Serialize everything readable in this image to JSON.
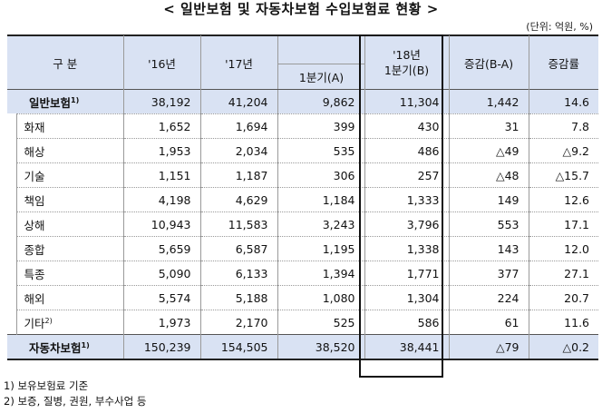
{
  "title": "< 일반보험 및 자동차보험 수입보험료 현황 >",
  "unit": "(단위: 억원, %)",
  "headers": {
    "category": "구   분",
    "y16": "'16년",
    "y17": "'17년",
    "q1a": "1분기(A)",
    "y18_line1": "'18년",
    "y18_line2": "1분기(B)",
    "change": "증감(B-A)",
    "rate": "증감률"
  },
  "rows": [
    {
      "label": "일반보험",
      "sup": "1)",
      "y16": "38,192",
      "y17": "41,204",
      "q1a": "9,862",
      "q1b": "11,304",
      "change": "1,442",
      "rate": "14.6"
    },
    {
      "label": "화재",
      "sup": "",
      "y16": "1,652",
      "y17": "1,694",
      "q1a": "399",
      "q1b": "430",
      "change": "31",
      "rate": "7.8"
    },
    {
      "label": "해상",
      "sup": "",
      "y16": "1,953",
      "y17": "2,034",
      "q1a": "535",
      "q1b": "486",
      "change": "△49",
      "rate": "△9.2"
    },
    {
      "label": "기술",
      "sup": "",
      "y16": "1,151",
      "y17": "1,187",
      "q1a": "306",
      "q1b": "257",
      "change": "△48",
      "rate": "△15.7"
    },
    {
      "label": "책임",
      "sup": "",
      "y16": "4,198",
      "y17": "4,629",
      "q1a": "1,184",
      "q1b": "1,333",
      "change": "149",
      "rate": "12.6"
    },
    {
      "label": "상해",
      "sup": "",
      "y16": "10,943",
      "y17": "11,583",
      "q1a": "3,243",
      "q1b": "3,796",
      "change": "553",
      "rate": "17.1"
    },
    {
      "label": "종합",
      "sup": "",
      "y16": "5,659",
      "y17": "6,587",
      "q1a": "1,195",
      "q1b": "1,338",
      "change": "143",
      "rate": "12.0"
    },
    {
      "label": "특종",
      "sup": "",
      "y16": "5,090",
      "y17": "6,133",
      "q1a": "1,394",
      "q1b": "1,771",
      "change": "377",
      "rate": "27.1"
    },
    {
      "label": "해외",
      "sup": "",
      "y16": "5,574",
      "y17": "5,188",
      "q1a": "1,080",
      "q1b": "1,304",
      "change": "224",
      "rate": "20.7"
    },
    {
      "label": "기타",
      "sup": "2)",
      "y16": "1,973",
      "y17": "2,170",
      "q1a": "525",
      "q1b": "586",
      "change": "61",
      "rate": "11.6"
    },
    {
      "label": "자동차보험",
      "sup": "1)",
      "y16": "150,239",
      "y17": "154,505",
      "q1a": "38,520",
      "q1b": "38,441",
      "change": "△79",
      "rate": "△0.2"
    }
  ],
  "notes": [
    "1) 보유보험료 기준",
    "2) 보증, 질병, 권원, 부수사업 등"
  ]
}
